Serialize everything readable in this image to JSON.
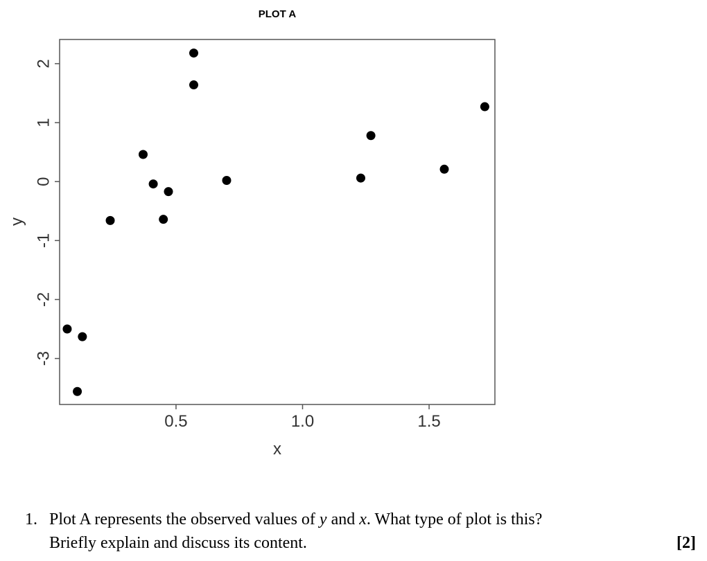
{
  "chart_data": {
    "type": "scatter",
    "title": "PLOT A",
    "xlabel": "x",
    "ylabel": "y",
    "xlim": [
      0.04,
      1.76
    ],
    "ylim": [
      -3.78,
      2.41
    ],
    "xticks": [
      0.5,
      1.0,
      1.5
    ],
    "xtick_labels": [
      "0.5",
      "1.0",
      "1.5"
    ],
    "yticks": [
      -3,
      -2,
      -1,
      0,
      1,
      2
    ],
    "ytick_labels": [
      "-3",
      "-2",
      "-1",
      "0",
      "1",
      "2"
    ],
    "grid": false,
    "legend": "none",
    "marker_color": "#000000",
    "points": [
      {
        "x": 0.07,
        "y": -2.5
      },
      {
        "x": 0.11,
        "y": -3.56
      },
      {
        "x": 0.13,
        "y": -2.63
      },
      {
        "x": 0.24,
        "y": -0.66
      },
      {
        "x": 0.37,
        "y": 0.46
      },
      {
        "x": 0.41,
        "y": -0.04
      },
      {
        "x": 0.45,
        "y": -0.64
      },
      {
        "x": 0.47,
        "y": -0.17
      },
      {
        "x": 0.57,
        "y": 2.18
      },
      {
        "x": 0.57,
        "y": 1.64
      },
      {
        "x": 0.7,
        "y": 0.02
      },
      {
        "x": 1.23,
        "y": 0.06
      },
      {
        "x": 1.27,
        "y": 0.78
      },
      {
        "x": 1.56,
        "y": 0.21
      },
      {
        "x": 1.72,
        "y": 1.27
      }
    ]
  },
  "question": {
    "number": "1.",
    "line1_before_y": "Plot A represents the observed values of ",
    "var_y": "y",
    "line1_and": " and ",
    "var_x": "x",
    "line1_after": ". What type of plot is this?",
    "line2": "Briefly explain and discuss its content.",
    "marks": "[2]"
  }
}
